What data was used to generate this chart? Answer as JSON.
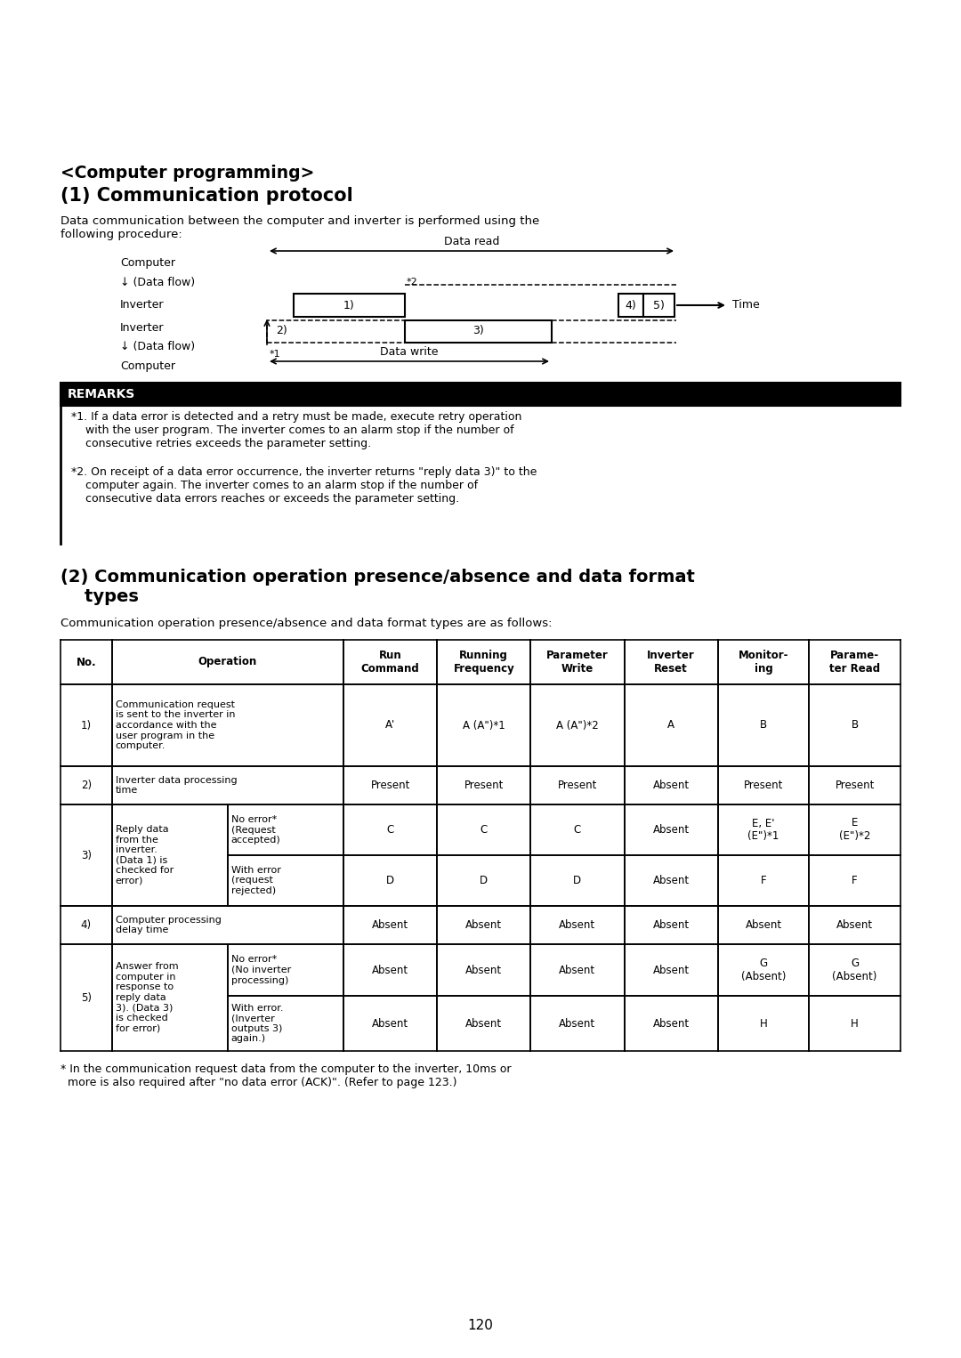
{
  "title1": "<Computer programming>",
  "title2": "(1) Communication protocol",
  "intro_text": "Data communication between the computer and inverter is performed using the\nfollowing procedure:",
  "remarks_title": "REMARKS",
  "rem1": "*1. If a data error is detected and a retry must be made, execute retry operation\n    with the user program. The inverter comes to an alarm stop if the number of\n    consecutive retries exceeds the parameter setting.",
  "rem2": "*2. On receipt of a data error occurrence, the inverter returns \"reply data 3)\" to the\n    computer again. The inverter comes to an alarm stop if the number of\n    consecutive data errors reaches or exceeds the parameter setting.",
  "section2_title": "(2) Communication operation presence/absence and data format\n    types",
  "section2_intro": "Communication operation presence/absence and data format types are as follows:",
  "footnote": "* In the communication request data from the computer to the inverter, 10ms or\n  more is also required after \"no data error (ACK)\". (Refer to page 123.)",
  "page_number": "120",
  "bg_color": "#ffffff"
}
